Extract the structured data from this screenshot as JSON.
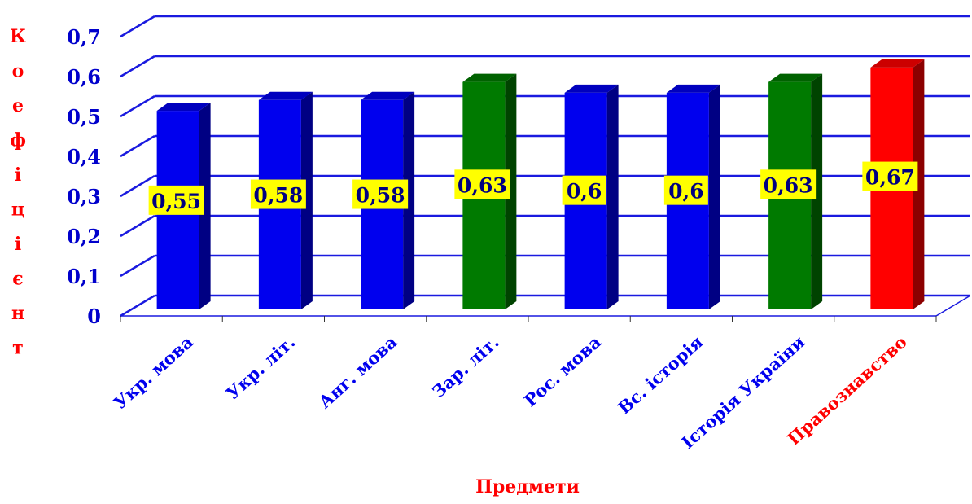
{
  "chart_data": {
    "type": "bar",
    "title": "",
    "xlabel": "Предмети",
    "ylabel": "Коефіцієнт",
    "ylim": [
      0,
      0.7
    ],
    "yticks": [
      "0",
      "0,1",
      "0,2",
      "0,3",
      "0,4",
      "0,5",
      "0,6",
      "0,7"
    ],
    "categories": [
      "Укр. мова",
      "Укр. літ.",
      "Анг. мова",
      "Зар. літ.",
      "Рос. мова",
      "Вс. історія",
      "Історія України",
      "Правознавство"
    ],
    "values": [
      0.55,
      0.58,
      0.58,
      0.63,
      0.6,
      0.6,
      0.63,
      0.67
    ],
    "value_labels": [
      "0,55",
      "0,58",
      "0,58",
      "0,63",
      "0,6",
      "0,6",
      "0,63",
      "0,67"
    ],
    "bar_colors": [
      "#0000ee",
      "#0000ee",
      "#0000ee",
      "#007a00",
      "#0000ee",
      "#0000ee",
      "#007a00",
      "#ff0000"
    ],
    "category_label_colors": [
      "#0000ee",
      "#0000ee",
      "#0000ee",
      "#0000ee",
      "#0000ee",
      "#0000ee",
      "#0000ee",
      "#ff0000"
    ],
    "grid": true,
    "legend": "none",
    "colors": {
      "grid": "#1a1adf",
      "axis_text": "#0000cc",
      "axis_title": "#ff0000",
      "label_box": "#ffff00",
      "label_text": "#000080"
    }
  }
}
